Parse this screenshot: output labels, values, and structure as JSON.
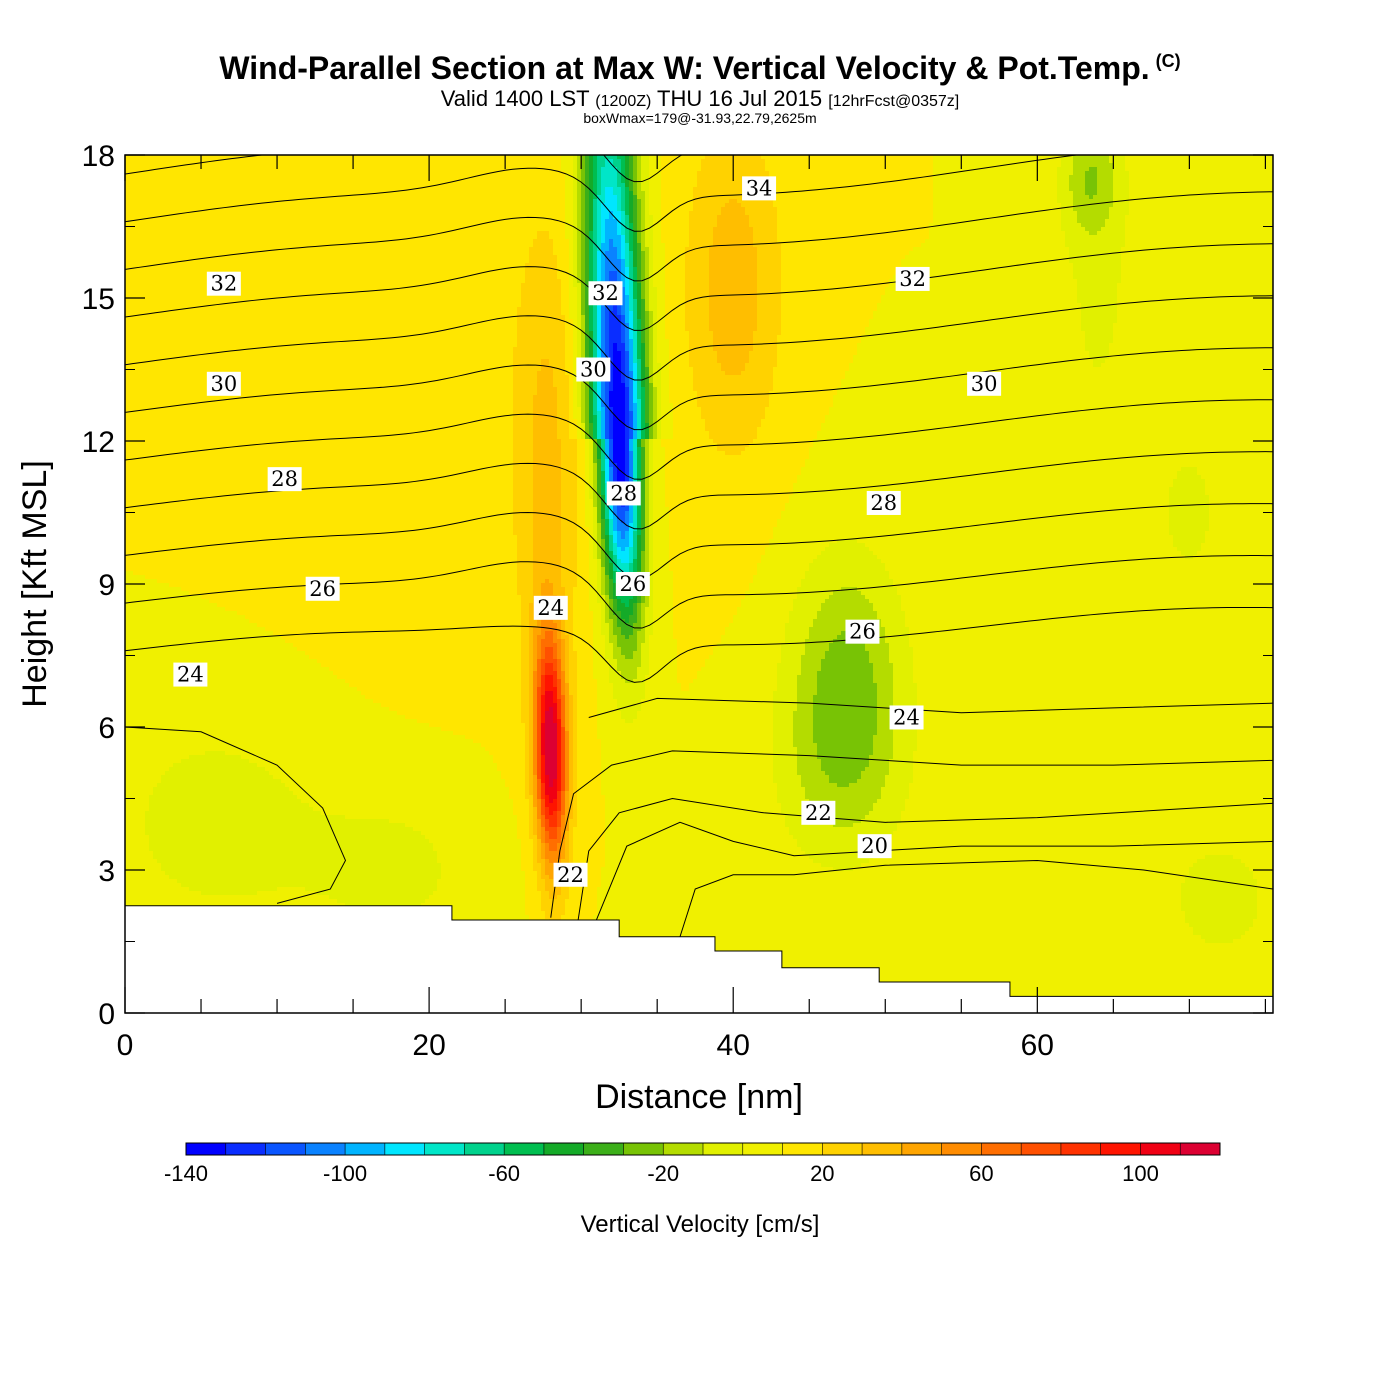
{
  "title": {
    "main": "Wind-Parallel Section at Max W: Vertical Velocity & Pot.Temp.",
    "copyright": "(C)",
    "valid_prefix": "Valid 1400 LST",
    "valid_z": "(1200Z)",
    "valid_date": "THU 16 Jul 2015",
    "valid_fcst": "[12hrFcst@0357z]",
    "boxwmax": "boxWmax=179@-31.93,22.79,2625m"
  },
  "chart_data": {
    "type": "heatmap",
    "xlabel": "Distance [nm]",
    "ylabel": "Height [Kft MSL]",
    "xlim": [
      0,
      75.5
    ],
    "ylim": [
      0,
      18
    ],
    "xticks": [
      0,
      20,
      40,
      60
    ],
    "yticks": [
      0,
      3,
      6,
      9,
      12,
      15,
      18
    ],
    "grid": false,
    "terrain": {
      "description_values": "stepped ground height (x nm, height kft)",
      "steps": [
        [
          0,
          2.25
        ],
        [
          21.5,
          1.95
        ],
        [
          32.5,
          1.6
        ],
        [
          38.8,
          1.3
        ],
        [
          43.2,
          0.95
        ],
        [
          49.6,
          0.65
        ],
        [
          58.2,
          0.35
        ],
        [
          75.5,
          0.35
        ]
      ]
    },
    "vertical_velocity": {
      "units": "cm/s",
      "background": 10,
      "features": [
        {
          "kind": "downdraft",
          "x": 32.5,
          "y": 12.0,
          "min_value": -140
        },
        {
          "kind": "updraft",
          "x": 28.0,
          "y": 5.5,
          "max_value": 115
        },
        {
          "kind": "updraft",
          "x": 40.0,
          "y": 15.5,
          "max_value": 40
        },
        {
          "kind": "weak_sink",
          "x": 47.5,
          "y": 7.5,
          "min_value": -25
        },
        {
          "kind": "weak_sink",
          "x": 72.0,
          "y": 2.3,
          "min_value": -10
        }
      ]
    },
    "colorbar": {
      "label": "Vertical Velocity [cm/s]",
      "min": -140,
      "max": 120,
      "step": 10,
      "tick_values": [
        -140,
        -100,
        -60,
        -20,
        20,
        60,
        100
      ],
      "tick_labels": [
        "-140",
        "-100",
        "-60",
        "-20",
        "20",
        "60",
        "100"
      ],
      "colors": [
        "#0000ff",
        "#0a2dff",
        "#0a55ff",
        "#0a82ff",
        "#00b4ff",
        "#00e6ff",
        "#00e6c8",
        "#00d28c",
        "#00be50",
        "#14aa28",
        "#3caf19",
        "#78c305",
        "#b4dc00",
        "#e1f000",
        "#f0f000",
        "#ffe600",
        "#ffd200",
        "#ffbe00",
        "#ffa500",
        "#ff8c00",
        "#ff6e00",
        "#ff5000",
        "#ff3200",
        "#ff1400",
        "#f00014",
        "#dc0032"
      ]
    },
    "theta_contours": {
      "units": "C",
      "contour_labels": [
        {
          "text": "34",
          "x": 41.7,
          "y": 17.3
        },
        {
          "text": "32",
          "x": 6.5,
          "y": 15.3
        },
        {
          "text": "32",
          "x": 31.6,
          "y": 15.1
        },
        {
          "text": "32",
          "x": 51.8,
          "y": 15.4
        },
        {
          "text": "30",
          "x": 6.5,
          "y": 13.2
        },
        {
          "text": "30",
          "x": 30.8,
          "y": 13.5
        },
        {
          "text": "30",
          "x": 56.5,
          "y": 13.2
        },
        {
          "text": "28",
          "x": 10.5,
          "y": 11.2
        },
        {
          "text": "28",
          "x": 32.8,
          "y": 10.9
        },
        {
          "text": "28",
          "x": 49.9,
          "y": 10.7
        },
        {
          "text": "26",
          "x": 13.0,
          "y": 8.9
        },
        {
          "text": "26",
          "x": 33.4,
          "y": 9.0
        },
        {
          "text": "26",
          "x": 48.5,
          "y": 8.0
        },
        {
          "text": "24",
          "x": 4.3,
          "y": 7.1
        },
        {
          "text": "24",
          "x": 28.0,
          "y": 8.5
        },
        {
          "text": "24",
          "x": 51.4,
          "y": 6.2
        },
        {
          "text": "22",
          "x": 29.3,
          "y": 2.9
        },
        {
          "text": "22",
          "x": 45.6,
          "y": 4.2
        },
        {
          "text": "20",
          "x": 49.3,
          "y": 3.5
        }
      ]
    }
  }
}
